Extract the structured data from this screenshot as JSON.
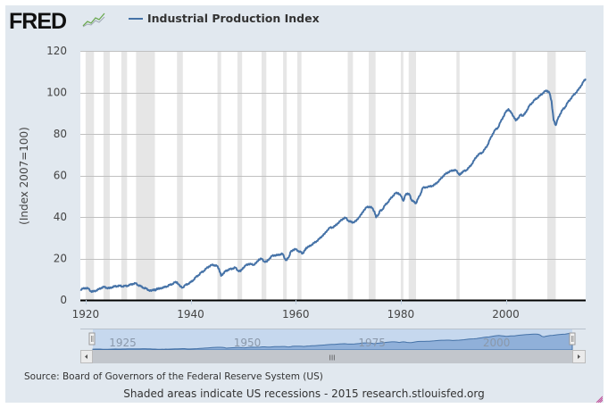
{
  "header": {
    "logo_text": "FRED",
    "logo_icon": "line-chart-icon",
    "legend_label": "Industrial Production Index",
    "series_color": "#4572a7"
  },
  "chart_data": {
    "type": "line",
    "title": "Industrial Production Index",
    "xlabel": "",
    "ylabel": "(Index 2007=100)",
    "xlim": [
      1919,
      2015.2
    ],
    "ylim": [
      0,
      120
    ],
    "yticks": [
      0,
      20,
      40,
      60,
      80,
      100,
      120
    ],
    "xticks": [
      1920,
      1940,
      1960,
      1980,
      2000
    ],
    "grid": true,
    "legend": "top-left",
    "recession_color": "#e6e6e6",
    "recessions": [
      [
        1920.0,
        1921.6
      ],
      [
        1923.4,
        1924.6
      ],
      [
        1926.8,
        1927.9
      ],
      [
        1929.6,
        1933.2
      ],
      [
        1937.4,
        1938.5
      ],
      [
        1945.1,
        1945.8
      ],
      [
        1948.9,
        1949.8
      ],
      [
        1953.5,
        1954.4
      ],
      [
        1957.6,
        1958.3
      ],
      [
        1960.3,
        1961.1
      ],
      [
        1969.9,
        1970.9
      ],
      [
        1973.9,
        1975.2
      ],
      [
        1980.0,
        1980.5
      ],
      [
        1981.5,
        1982.9
      ],
      [
        1990.6,
        1991.2
      ],
      [
        2001.2,
        2001.9
      ],
      [
        2007.9,
        2009.5
      ]
    ],
    "series": [
      {
        "name": "Industrial Production Index",
        "x": [
          1919.0,
          1919.5,
          1920.0,
          1920.5,
          1921.0,
          1921.4,
          1922.0,
          1922.5,
          1923.0,
          1923.5,
          1924.0,
          1924.5,
          1925.0,
          1925.5,
          1926.0,
          1926.5,
          1927.0,
          1927.5,
          1928.0,
          1928.5,
          1929.0,
          1929.5,
          1930.0,
          1930.5,
          1931.0,
          1931.5,
          1932.0,
          1932.5,
          1933.0,
          1933.3,
          1933.6,
          1934.0,
          1934.5,
          1935.0,
          1935.5,
          1936.0,
          1936.5,
          1937.0,
          1937.4,
          1938.0,
          1938.5,
          1939.0,
          1939.5,
          1940.0,
          1940.5,
          1941.0,
          1941.5,
          1942.0,
          1942.5,
          1943.0,
          1943.5,
          1944.0,
          1944.5,
          1945.0,
          1945.4,
          1945.8,
          1946.2,
          1946.6,
          1947.0,
          1947.5,
          1948.0,
          1948.5,
          1949.0,
          1949.5,
          1950.0,
          1950.5,
          1951.0,
          1951.5,
          1952.0,
          1952.5,
          1953.0,
          1953.5,
          1954.0,
          1954.5,
          1955.0,
          1955.5,
          1956.0,
          1956.5,
          1957.0,
          1957.5,
          1958.0,
          1958.3,
          1958.8,
          1959.0,
          1959.5,
          1960.0,
          1960.5,
          1961.0,
          1961.3,
          1961.8,
          1962.0,
          1962.5,
          1963.0,
          1963.5,
          1964.0,
          1964.5,
          1965.0,
          1965.5,
          1966.0,
          1966.5,
          1967.0,
          1967.5,
          1968.0,
          1968.5,
          1969.0,
          1969.5,
          1970.0,
          1970.5,
          1970.9,
          1971.5,
          1972.0,
          1972.5,
          1973.0,
          1973.5,
          1974.0,
          1974.5,
          1975.0,
          1975.3,
          1975.8,
          1976.0,
          1976.5,
          1977.0,
          1977.5,
          1978.0,
          1978.5,
          1979.0,
          1979.5,
          1980.0,
          1980.5,
          1980.9,
          1981.3,
          1981.7,
          1982.0,
          1982.5,
          1982.9,
          1983.3,
          1983.8,
          1984.2,
          1984.8,
          1985.5,
          1986.0,
          1986.5,
          1987.0,
          1987.5,
          1988.0,
          1988.5,
          1989.0,
          1989.5,
          1990.0,
          1990.5,
          1991.0,
          1991.2,
          1991.6,
          1992.0,
          1992.5,
          1993.0,
          1993.5,
          1994.0,
          1994.5,
          1995.0,
          1995.5,
          1996.0,
          1996.5,
          1997.0,
          1997.5,
          1998.0,
          1998.5,
          1999.0,
          1999.5,
          2000.0,
          2000.5,
          2001.0,
          2001.5,
          2001.9,
          2002.3,
          2002.8,
          2003.2,
          2003.6,
          2004.0,
          2004.5,
          2005.0,
          2005.5,
          2006.0,
          2006.5,
          2007.0,
          2007.5,
          2007.9,
          2008.3,
          2008.7,
          2009.1,
          2009.5,
          2009.9,
          2010.3,
          2010.8,
          2011.3,
          2011.8,
          2012.3,
          2012.8,
          2013.3,
          2013.8,
          2014.3,
          2014.8,
          2015.2
        ],
        "values": [
          5.0,
          5.4,
          5.8,
          5.5,
          4.2,
          4.0,
          4.6,
          5.1,
          5.9,
          6.3,
          5.9,
          5.6,
          6.2,
          6.5,
          6.7,
          6.8,
          6.6,
          6.7,
          6.9,
          7.3,
          7.8,
          8.0,
          7.2,
          6.6,
          5.9,
          5.5,
          4.8,
          4.3,
          5.2,
          4.5,
          5.6,
          5.3,
          5.9,
          6.1,
          6.6,
          7.2,
          7.7,
          8.5,
          8.6,
          6.5,
          6.0,
          7.2,
          7.8,
          8.5,
          9.6,
          11.0,
          12.0,
          13.2,
          14.0,
          15.2,
          16.2,
          16.8,
          16.8,
          16.4,
          15.0,
          11.6,
          12.8,
          13.8,
          14.4,
          14.8,
          15.2,
          15.6,
          14.2,
          13.8,
          15.6,
          16.6,
          17.4,
          17.2,
          17.0,
          17.8,
          19.6,
          19.8,
          18.6,
          18.4,
          20.0,
          21.2,
          21.6,
          21.5,
          22.0,
          22.2,
          19.6,
          19.2,
          21.4,
          23.0,
          24.2,
          24.4,
          23.6,
          23.0,
          22.4,
          24.0,
          25.2,
          25.6,
          26.6,
          27.4,
          28.4,
          29.4,
          30.8,
          31.8,
          33.6,
          34.8,
          35.0,
          35.6,
          37.0,
          38.0,
          39.2,
          39.6,
          38.2,
          37.6,
          37.4,
          38.0,
          39.8,
          41.2,
          43.4,
          44.6,
          45.0,
          44.4,
          42.6,
          39.8,
          41.4,
          42.8,
          43.6,
          45.6,
          47.0,
          48.6,
          50.2,
          51.4,
          51.6,
          50.2,
          47.8,
          50.6,
          51.4,
          50.6,
          48.4,
          47.2,
          46.6,
          48.8,
          51.4,
          54.0,
          54.4,
          54.6,
          55.0,
          55.6,
          56.8,
          58.0,
          59.6,
          60.6,
          61.6,
          62.0,
          62.6,
          62.4,
          61.0,
          60.2,
          61.4,
          62.0,
          62.6,
          63.8,
          65.4,
          67.4,
          69.4,
          70.4,
          71.0,
          72.6,
          74.6,
          77.4,
          80.0,
          82.0,
          83.0,
          85.8,
          88.2,
          90.6,
          92.0,
          90.2,
          88.4,
          86.4,
          87.6,
          89.2,
          88.8,
          89.6,
          91.4,
          93.6,
          95.0,
          96.4,
          97.4,
          98.4,
          99.6,
          100.6,
          100.8,
          99.8,
          95.8,
          86.6,
          84.2,
          87.2,
          89.4,
          91.6,
          93.0,
          95.2,
          96.8,
          98.4,
          99.8,
          101.2,
          103.2,
          105.2,
          106.6
        ]
      }
    ]
  },
  "navigator": {
    "labels": [
      "1925",
      "1950",
      "1975",
      "2000"
    ],
    "scrollbar_grip": "III"
  },
  "footer": {
    "source": "Source: Board of Governors of the Federal Reserve System (US)",
    "note": "Shaded areas indicate US recessions - 2015 research.stlouisfed.org"
  }
}
